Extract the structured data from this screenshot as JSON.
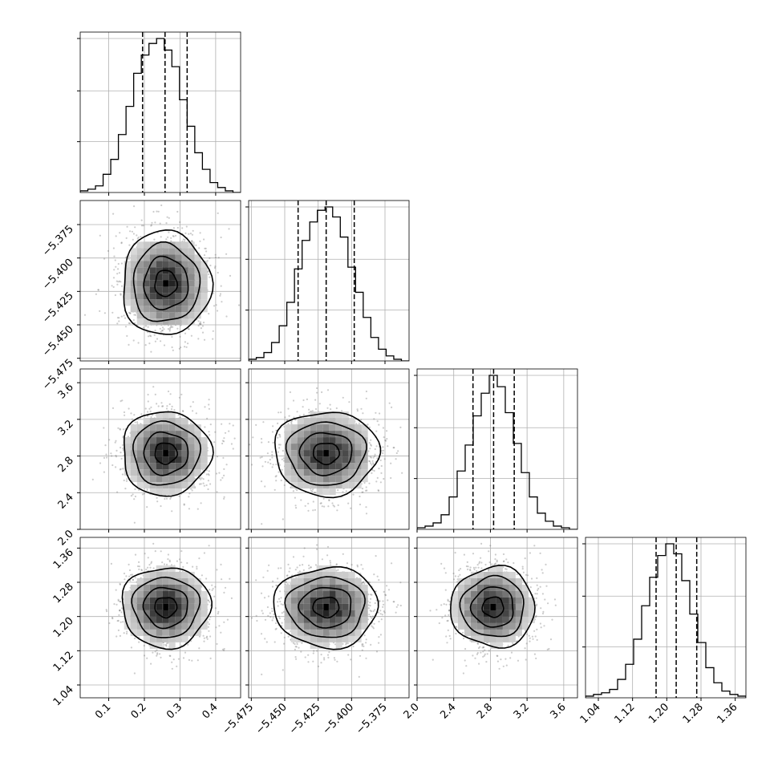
{
  "chart_data": {
    "type": "corner",
    "parameters": [
      {
        "ticks": [
          0.1,
          0.2,
          0.3,
          0.4
        ],
        "tick_labels": [
          "0.1",
          "0.2",
          "0.3",
          "0.4"
        ],
        "range": [
          0.02,
          0.47
        ]
      },
      {
        "ticks": [
          -5.475,
          -5.45,
          -5.425,
          -5.4,
          -5.375
        ],
        "tick_labels": [
          "−5.475",
          "−5.450",
          "−5.425",
          "−5.400",
          "−5.375"
        ],
        "range": [
          -5.477,
          -5.357
        ]
      },
      {
        "ticks": [
          2.0,
          2.4,
          2.8,
          3.2,
          3.6
        ],
        "tick_labels": [
          "2.0",
          "2.4",
          "2.8",
          "3.2",
          "3.6"
        ],
        "range": [
          2.0,
          3.75
        ]
      },
      {
        "ticks": [
          1.04,
          1.12,
          1.2,
          1.28,
          1.36
        ],
        "tick_labels": [
          "1.04",
          "1.12",
          "1.20",
          "1.28",
          "1.36"
        ],
        "range": [
          1.01,
          1.385
        ]
      }
    ],
    "posterior_means": [
      0.26,
      -5.419,
      2.83,
      1.222
    ],
    "posterior_stds": [
      0.062,
      0.0195,
      0.23,
      0.047
    ],
    "quantiles": [
      [
        0.195,
        0.258,
        0.32
      ],
      [
        -5.44,
        -5.419,
        -5.398
      ],
      [
        2.61,
        2.835,
        3.06
      ],
      [
        1.175,
        1.222,
        1.27
      ]
    ],
    "histograms": [
      {
        "values": [
          1,
          2,
          4,
          11,
          20,
          35,
          52,
          72,
          83,
          90,
          93,
          86,
          76,
          56,
          40,
          24,
          14,
          6,
          3,
          1,
          0
        ]
      },
      {
        "values": [
          1,
          2,
          5,
          11,
          21,
          35,
          55,
          72,
          83,
          90,
          92,
          86,
          74,
          56,
          41,
          26,
          14,
          7,
          3,
          1,
          0
        ]
      },
      {
        "values": [
          1,
          2,
          4,
          9,
          20,
          36,
          52,
          70,
          84,
          95,
          88,
          72,
          53,
          35,
          20,
          10,
          5,
          2,
          1,
          0
        ]
      },
      {
        "values": [
          1,
          2,
          3,
          5,
          11,
          20,
          35,
          55,
          72,
          85,
          92,
          86,
          70,
          50,
          33,
          18,
          9,
          4,
          2,
          1
        ]
      }
    ],
    "contour_levels": [
      0.118,
      0.393,
      0.675,
      0.865
    ],
    "colors": {
      "line": "#000000",
      "grid": "#b0b0b0",
      "scatter": "#6e6e6e"
    },
    "grid": true,
    "quantile_line_style": "dashed"
  }
}
